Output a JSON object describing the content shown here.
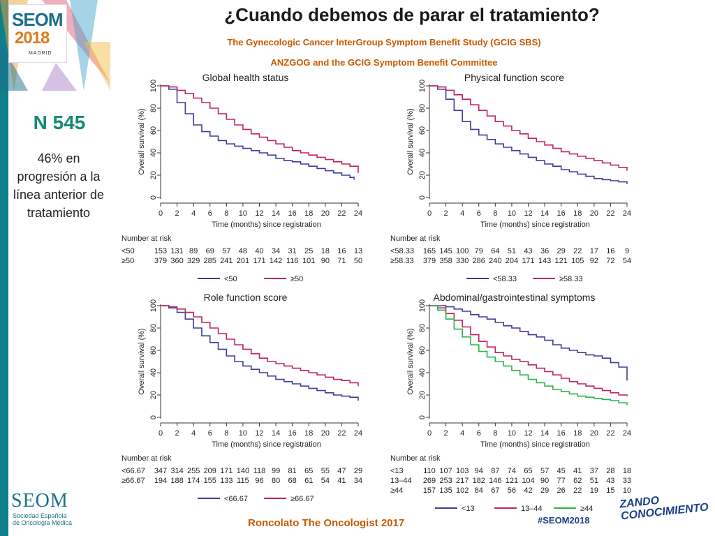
{
  "header": {
    "title": "¿Cuando debemos de parar el tratamiento?",
    "subtitle1": "The Gynecologic Cancer InterGroup Symptom Benefit Study (GCIG SBS)",
    "subtitle2": "ANZGOG and the GCIG Symptom Benefit Committee"
  },
  "logo": {
    "brand": "SEOM",
    "year": "2018",
    "city": "MADRID"
  },
  "sidebar": {
    "n_label": "N 545",
    "description": "46% en progresión a la línea anterior de tratamiento"
  },
  "footer": {
    "reference": "Roncolato The Oncologist 2017",
    "hashtag": "#SEOM2018",
    "org_name": "SEOM",
    "org_sub1": "Sociedad Española",
    "org_sub2": "de Oncología Médica",
    "campaign1": "ZANDO",
    "campaign2": "CONOCIMIENTO"
  },
  "colors": {
    "blue": "#3d3d9a",
    "red": "#c0245a",
    "green": "#2db34a",
    "accent": "#c75a00",
    "teal": "#148a74"
  },
  "chart_data": [
    {
      "type": "line",
      "title": "Global health status",
      "xlabel": "Time (months) since registration",
      "ylabel": "Overall survival (%)",
      "xlim": [
        0,
        24
      ],
      "ylim": [
        0,
        100
      ],
      "xticks": [
        0,
        2,
        4,
        6,
        8,
        10,
        12,
        14,
        16,
        18,
        20,
        22,
        24
      ],
      "yticks": [
        0,
        20,
        40,
        60,
        80,
        100
      ],
      "risk_label": "Number at risk",
      "series": [
        {
          "name": "<50",
          "color": "#3d3d9a",
          "x": [
            0,
            1,
            2,
            3,
            4,
            5,
            6,
            7,
            8,
            9,
            10,
            11,
            12,
            13,
            14,
            15,
            16,
            17,
            18,
            19,
            20,
            21,
            22,
            23,
            23.5
          ],
          "y": [
            100,
            97,
            85,
            75,
            65,
            59,
            55,
            51,
            48,
            46,
            44,
            42,
            40,
            38,
            35,
            33,
            32,
            30,
            28,
            26,
            24,
            22,
            20,
            18,
            16
          ],
          "risk": [
            "153",
            "131",
            "89",
            "69",
            "57",
            "48",
            "40",
            "34",
            "31",
            "25",
            "18",
            "16",
            "13"
          ]
        },
        {
          "name": "≥50",
          "color": "#c0245a",
          "x": [
            0,
            1,
            2,
            3,
            4,
            5,
            6,
            7,
            8,
            9,
            10,
            11,
            12,
            13,
            14,
            15,
            16,
            17,
            18,
            19,
            20,
            21,
            22,
            23,
            24
          ],
          "y": [
            100,
            99,
            96,
            93,
            89,
            85,
            80,
            75,
            70,
            65,
            61,
            57,
            54,
            51,
            48,
            45,
            42,
            40,
            38,
            36,
            34,
            32,
            30,
            28,
            22
          ],
          "risk": [
            "379",
            "360",
            "329",
            "285",
            "241",
            "201",
            "171",
            "142",
            "116",
            "101",
            "90",
            "71",
            "50"
          ]
        }
      ]
    },
    {
      "type": "line",
      "title": "Physical function score",
      "xlabel": "Time (months) since registration",
      "ylabel": "Overall survival (%)",
      "xlim": [
        0,
        24
      ],
      "ylim": [
        0,
        100
      ],
      "xticks": [
        0,
        2,
        4,
        6,
        8,
        10,
        12,
        14,
        16,
        18,
        20,
        22,
        24
      ],
      "yticks": [
        0,
        20,
        40,
        60,
        80,
        100
      ],
      "risk_label": "Number at risk",
      "series": [
        {
          "name": "<58.33",
          "color": "#3d3d9a",
          "x": [
            0,
            1,
            2,
            3,
            4,
            5,
            6,
            7,
            8,
            9,
            10,
            11,
            12,
            13,
            14,
            15,
            16,
            17,
            18,
            19,
            20,
            21,
            22,
            23,
            24
          ],
          "y": [
            100,
            97,
            88,
            78,
            68,
            61,
            56,
            52,
            48,
            45,
            42,
            39,
            36,
            33,
            30,
            28,
            25,
            23,
            21,
            19,
            17,
            16,
            15,
            14,
            12
          ],
          "risk": [
            "165",
            "145",
            "100",
            "79",
            "64",
            "51",
            "43",
            "36",
            "29",
            "22",
            "17",
            "16",
            "9"
          ]
        },
        {
          "name": "≥58.33",
          "color": "#c0245a",
          "x": [
            0,
            1,
            2,
            3,
            4,
            5,
            6,
            7,
            8,
            9,
            10,
            11,
            12,
            13,
            14,
            15,
            16,
            17,
            18,
            19,
            20,
            21,
            22,
            23,
            24
          ],
          "y": [
            100,
            99,
            96,
            92,
            88,
            83,
            78,
            73,
            68,
            64,
            60,
            57,
            53,
            50,
            47,
            44,
            41,
            39,
            37,
            35,
            33,
            31,
            29,
            27,
            24
          ],
          "risk": [
            "379",
            "358",
            "330",
            "286",
            "240",
            "204",
            "171",
            "143",
            "121",
            "105",
            "92",
            "72",
            "54"
          ]
        }
      ]
    },
    {
      "type": "line",
      "title": "Role function score",
      "xlabel": "Time (months) since registration",
      "ylabel": "Overall survival (%)",
      "xlim": [
        0,
        24
      ],
      "ylim": [
        0,
        100
      ],
      "xticks": [
        0,
        2,
        4,
        6,
        8,
        10,
        12,
        14,
        16,
        18,
        20,
        22,
        24
      ],
      "yticks": [
        0,
        20,
        40,
        60,
        80,
        100
      ],
      "risk_label": "Number at risk",
      "series": [
        {
          "name": "<66.67",
          "color": "#3d3d9a",
          "x": [
            0,
            1,
            2,
            3,
            4,
            5,
            6,
            7,
            8,
            9,
            10,
            11,
            12,
            13,
            14,
            15,
            16,
            17,
            18,
            19,
            20,
            21,
            22,
            23,
            24
          ],
          "y": [
            100,
            98,
            94,
            88,
            80,
            73,
            67,
            61,
            55,
            50,
            46,
            43,
            40,
            37,
            34,
            32,
            30,
            28,
            26,
            24,
            22,
            20,
            19,
            18,
            15
          ],
          "risk": [
            "347",
            "314",
            "255",
            "209",
            "171",
            "140",
            "118",
            "99",
            "81",
            "65",
            "55",
            "47",
            "29"
          ]
        },
        {
          "name": "≥66.67",
          "color": "#c0245a",
          "x": [
            0,
            1,
            2,
            3,
            4,
            5,
            6,
            7,
            8,
            9,
            10,
            11,
            12,
            13,
            14,
            15,
            16,
            17,
            18,
            19,
            20,
            21,
            22,
            23,
            24
          ],
          "y": [
            100,
            99,
            97,
            94,
            90,
            85,
            80,
            75,
            70,
            65,
            61,
            57,
            53,
            50,
            48,
            46,
            44,
            42,
            40,
            38,
            36,
            34,
            33,
            31,
            28
          ],
          "risk": [
            "194",
            "188",
            "174",
            "155",
            "133",
            "115",
            "96",
            "80",
            "68",
            "61",
            "54",
            "41",
            "34"
          ]
        }
      ]
    },
    {
      "type": "line",
      "title": "Abdominal/gastrointestinal symptoms",
      "xlabel": "Time (months) since registration",
      "ylabel": "Overall survival (%)",
      "xlim": [
        0,
        24
      ],
      "ylim": [
        0,
        100
      ],
      "xticks": [
        0,
        2,
        4,
        6,
        8,
        10,
        12,
        14,
        16,
        18,
        20,
        22,
        24
      ],
      "yticks": [
        0,
        20,
        40,
        60,
        80,
        100
      ],
      "risk_label": "Number at risk",
      "series": [
        {
          "name": "<13",
          "color": "#3d3d9a",
          "x": [
            0,
            1,
            2,
            3,
            4,
            5,
            6,
            7,
            8,
            9,
            10,
            11,
            12,
            13,
            14,
            15,
            16,
            17,
            18,
            19,
            20,
            21,
            22,
            23,
            24
          ],
          "y": [
            100,
            100,
            99,
            97,
            95,
            92,
            90,
            88,
            85,
            82,
            80,
            77,
            74,
            72,
            69,
            65,
            62,
            60,
            58,
            56,
            55,
            53,
            49,
            45,
            33
          ],
          "risk": [
            "110",
            "107",
            "103",
            "94",
            "87",
            "74",
            "65",
            "57",
            "45",
            "41",
            "37",
            "28",
            "18"
          ]
        },
        {
          "name": "13–44",
          "color": "#c0245a",
          "x": [
            0,
            1,
            2,
            3,
            4,
            5,
            6,
            7,
            8,
            9,
            10,
            11,
            12,
            13,
            14,
            15,
            16,
            17,
            18,
            19,
            20,
            21,
            22,
            23,
            24
          ],
          "y": [
            100,
            98,
            93,
            87,
            81,
            74,
            68,
            63,
            58,
            55,
            52,
            50,
            47,
            44,
            41,
            38,
            35,
            32,
            30,
            28,
            26,
            24,
            22,
            20,
            19
          ],
          "risk": [
            "269",
            "253",
            "217",
            "182",
            "146",
            "121",
            "104",
            "90",
            "77",
            "62",
            "51",
            "43",
            "33"
          ]
        },
        {
          "name": "≥44",
          "color": "#2db34a",
          "x": [
            0,
            1,
            2,
            3,
            4,
            5,
            6,
            7,
            8,
            9,
            10,
            11,
            12,
            13,
            14,
            15,
            16,
            17,
            18,
            19,
            20,
            21,
            22,
            23,
            24
          ],
          "y": [
            100,
            96,
            88,
            79,
            72,
            65,
            59,
            54,
            50,
            46,
            42,
            38,
            34,
            31,
            28,
            25,
            23,
            21,
            19,
            18,
            17,
            16,
            15,
            13,
            11
          ],
          "risk": [
            "157",
            "135",
            "102",
            "84",
            "67",
            "56",
            "42",
            "29",
            "26",
            "22",
            "19",
            "15",
            "10"
          ]
        }
      ]
    }
  ]
}
